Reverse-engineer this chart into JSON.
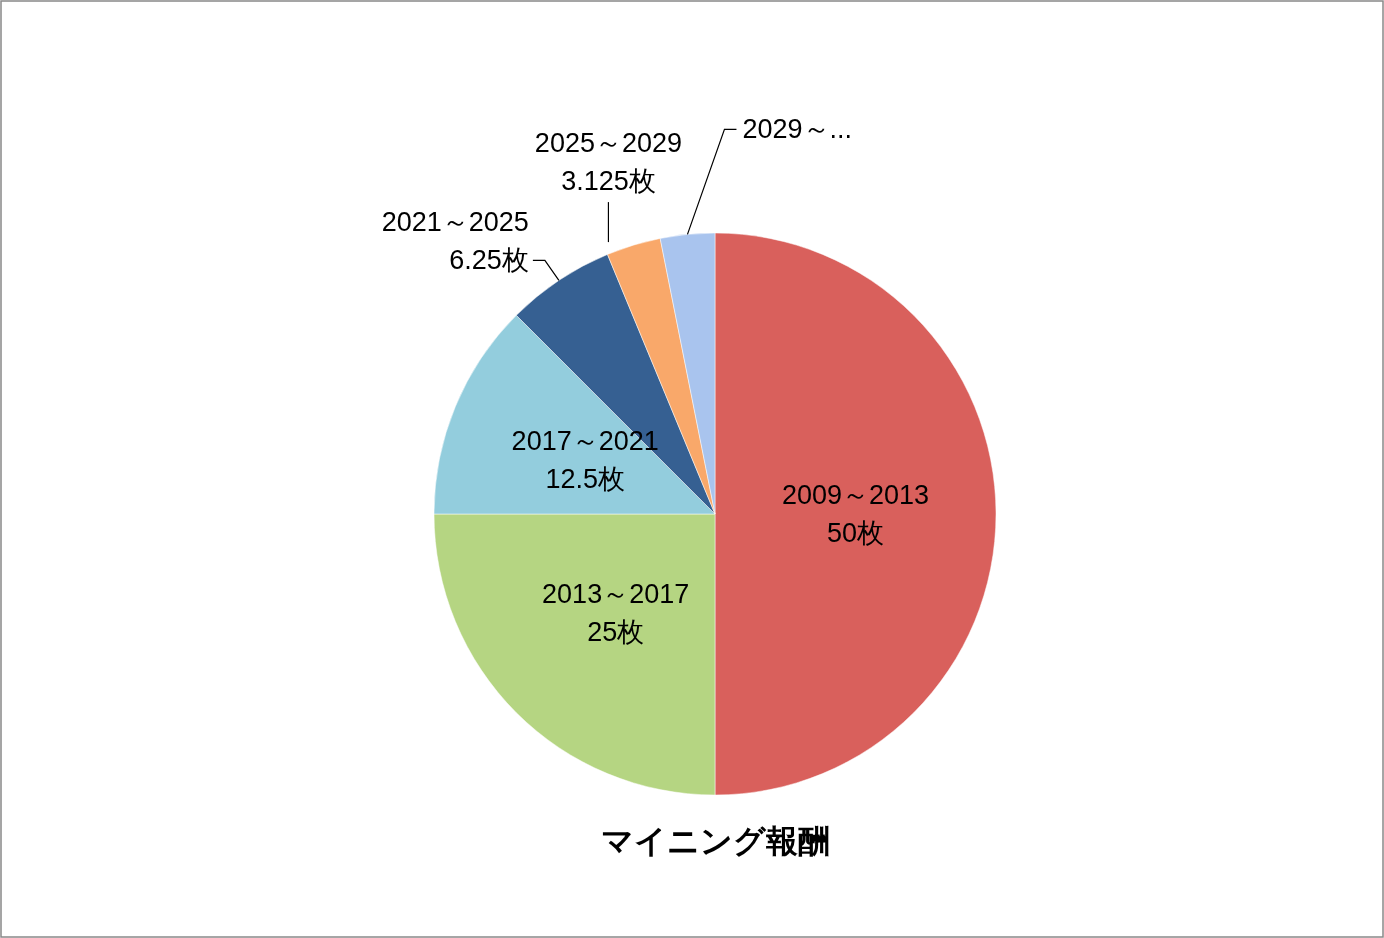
{
  "chart_data": {
    "type": "pie",
    "title": "マイニング報酬",
    "categories": [
      "2009～2013",
      "2013～2017",
      "2017～2021",
      "2021～2025",
      "2025～2029",
      "2029～..."
    ],
    "values": [
      50,
      25,
      12.5,
      6.25,
      3.125,
      3.125
    ],
    "value_labels": [
      "50枚",
      "25枚",
      "12.5枚",
      "6.25枚",
      "3.125枚",
      null
    ],
    "colors": [
      "#d9605c",
      "#b5d582",
      "#93cddd",
      "#366092",
      "#f9a86a",
      "#a9c4ee"
    ],
    "legend": false
  }
}
